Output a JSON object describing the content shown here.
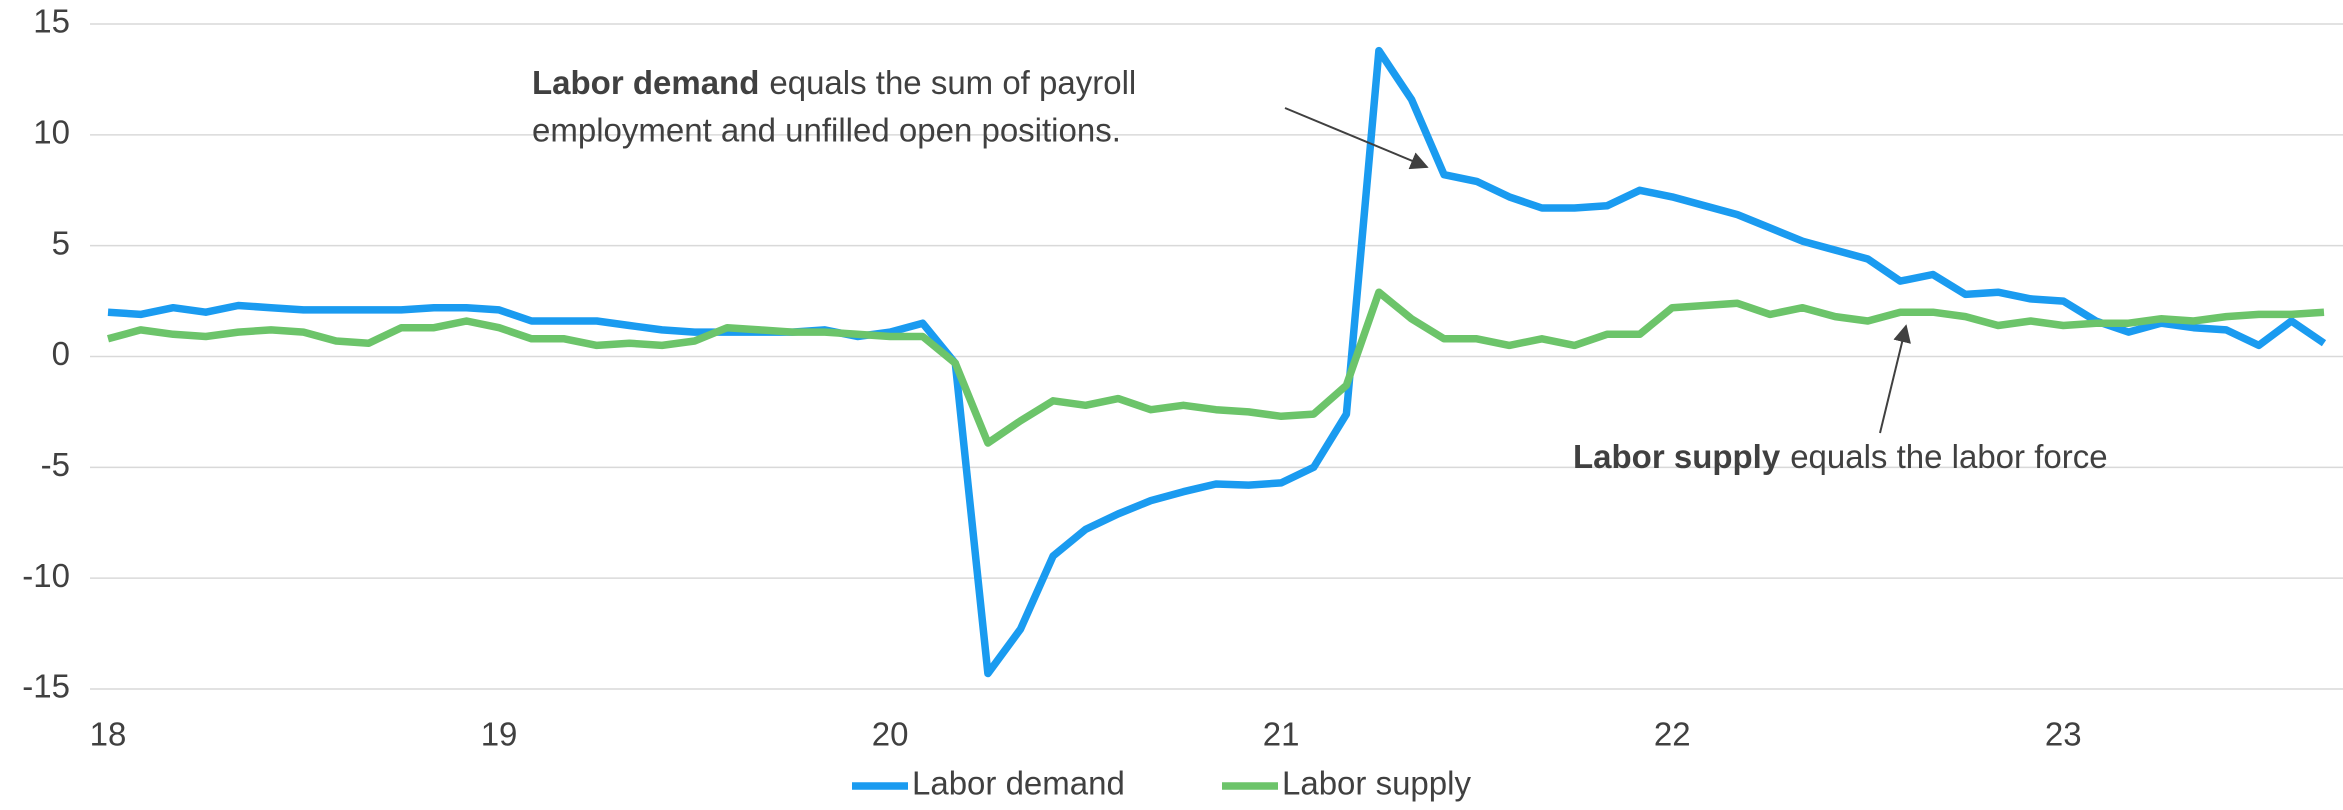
{
  "chart_data": {
    "type": "line",
    "x": [
      18,
      18.0833,
      18.1667,
      18.25,
      18.3333,
      18.4167,
      18.5,
      18.5833,
      18.6667,
      18.75,
      18.8333,
      18.9167,
      19,
      19.0833,
      19.1667,
      19.25,
      19.3333,
      19.4167,
      19.5,
      19.5833,
      19.6667,
      19.75,
      19.8333,
      19.9167,
      20,
      20.0833,
      20.1667,
      20.25,
      20.3333,
      20.4167,
      20.5,
      20.5833,
      20.6667,
      20.75,
      20.8333,
      20.9167,
      21,
      21.0833,
      21.1667,
      21.25,
      21.3333,
      21.4167,
      21.5,
      21.5833,
      21.6667,
      21.75,
      21.8333,
      21.9167,
      22,
      22.0833,
      22.1667,
      22.25,
      22.3333,
      22.4167,
      22.5,
      22.5833,
      22.6667,
      22.75,
      22.8333,
      22.9167,
      23,
      23.0833,
      23.1667,
      23.25,
      23.3333,
      23.4167,
      23.5,
      23.5833,
      23.6667
    ],
    "series": [
      {
        "name": "Labor demand",
        "color": "#1a9bf0",
        "values": [
          2.0,
          1.9,
          2.2,
          2.0,
          2.3,
          2.2,
          2.1,
          2.1,
          2.1,
          2.1,
          2.2,
          2.2,
          2.1,
          1.6,
          1.6,
          1.6,
          1.4,
          1.2,
          1.1,
          1.1,
          1.1,
          1.1,
          1.2,
          0.9,
          1.1,
          1.5,
          -0.3,
          -14.3,
          -12.3,
          -9.0,
          -7.8,
          -7.1,
          -6.5,
          -6.1,
          -5.75,
          -5.8,
          -5.7,
          -5.0,
          -2.6,
          13.8,
          11.6,
          8.2,
          7.9,
          7.2,
          6.7,
          6.7,
          6.8,
          7.5,
          7.2,
          6.8,
          6.4,
          5.8,
          5.2,
          4.8,
          4.4,
          3.4,
          3.7,
          2.8,
          2.9,
          2.6,
          2.5,
          1.6,
          1.1,
          1.5,
          1.3,
          1.2,
          0.5,
          1.6,
          0.6
        ]
      },
      {
        "name": "Labor supply",
        "color": "#6cc46a",
        "values": [
          0.8,
          1.2,
          1.0,
          0.9,
          1.1,
          1.2,
          1.1,
          0.7,
          0.6,
          1.3,
          1.3,
          1.6,
          1.3,
          0.8,
          0.8,
          0.5,
          0.6,
          0.5,
          0.7,
          1.3,
          1.2,
          1.1,
          1.1,
          1.0,
          0.9,
          0.9,
          -0.3,
          -3.9,
          -2.9,
          -2.0,
          -2.2,
          -1.9,
          -2.4,
          -2.2,
          -2.4,
          -2.5,
          -2.7,
          -2.6,
          -1.3,
          2.9,
          1.7,
          0.8,
          0.8,
          0.5,
          0.8,
          0.5,
          1.0,
          1.0,
          2.2,
          2.3,
          2.4,
          1.9,
          2.2,
          1.8,
          1.6,
          2.0,
          2.0,
          1.8,
          1.4,
          1.6,
          1.4,
          1.5,
          1.5,
          1.7,
          1.6,
          1.8,
          1.9,
          1.9,
          2.0
        ]
      }
    ],
    "xlim": [
      18,
      23.6667
    ],
    "xticks": [
      18,
      19,
      20,
      21,
      22,
      23
    ],
    "ylim": [
      -15,
      15
    ],
    "yticks": [
      -15,
      -10,
      -5,
      0,
      5,
      10,
      15
    ],
    "grid": true,
    "annotations": [
      {
        "bold": "Labor demand",
        "lines": [
          "equals the sum of payroll",
          "employment and unfilled open positions."
        ]
      },
      {
        "bold": "Labor supply",
        "lines": [
          "equals the labor force"
        ]
      }
    ]
  }
}
